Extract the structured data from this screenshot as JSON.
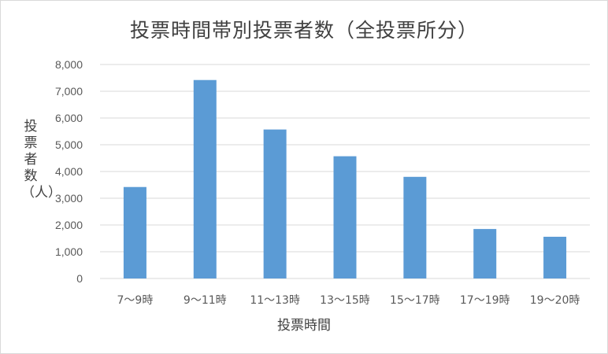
{
  "chart_data": {
    "type": "bar",
    "title": "投票時間帯別投票者数（全投票所分）",
    "xlabel": "投票時間",
    "ylabel": "投票者数（人）",
    "categories": [
      "7～9時",
      "9～11時",
      "11～13時",
      "13～15時",
      "15～17時",
      "17～19時",
      "19～20時"
    ],
    "values": [
      3420,
      7420,
      5570,
      4570,
      3800,
      1850,
      1560
    ],
    "ylim": [
      0,
      8000
    ],
    "yticks": [
      "0",
      "1,000",
      "2,000",
      "3,000",
      "4,000",
      "5,000",
      "6,000",
      "7,000",
      "8,000"
    ],
    "grid": true,
    "legend": "none",
    "bar_color": "#5b9bd5",
    "grid_color": "#d9d9d9"
  }
}
